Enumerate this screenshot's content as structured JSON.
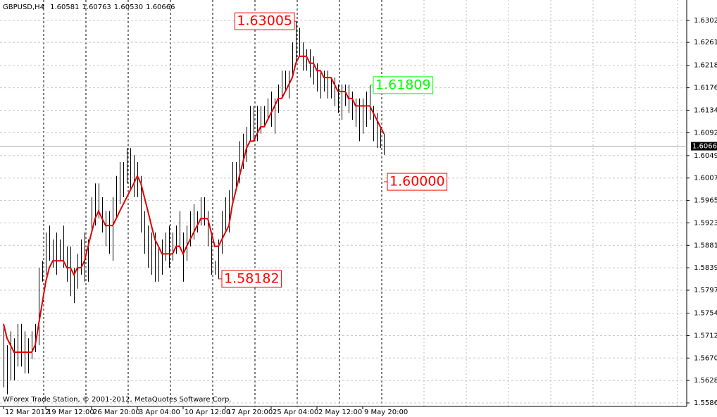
{
  "chart_data": {
    "type": "ohlc",
    "title": "GBPUSD,H4",
    "quote": [
      1.60581,
      1.60763,
      {
        "value": 1.6053,
        "label": "1.60530"
      },
      1.60666
    ],
    "footer": "WForex Trade Station, © 2001-2012, MetaQuotes Software Corp.",
    "color": "#000000",
    "high": [
      1.5734,
      1.5694,
      1.572,
      1.5707,
      1.5734,
      1.5734,
      1.572,
      1.5707,
      1.572,
      1.5734,
      1.5839,
      1.5852,
      1.5905,
      1.5918,
      1.5892,
      1.5905,
      1.5892,
      1.5918,
      1.5879,
      1.5879,
      1.5839,
      1.5865,
      1.5892,
      1.5905,
      1.5892,
      1.5971,
      1.5997,
      1.5997,
      1.5971,
      1.5945,
      1.5945,
      1.5971,
      1.6011,
      1.6037,
      1.6037,
      1.6063,
      1.6063,
      1.605,
      1.6037,
      1.6011,
      1.5945,
      1.5918,
      1.5905,
      1.5905,
      1.5879,
      1.5892,
      1.5905,
      1.5918,
      1.5905,
      1.5918,
      1.5945,
      1.5905,
      1.5918,
      1.5945,
      1.5958,
      1.5945,
      1.5971,
      1.5971,
      1.5945,
      1.5905,
      1.5852,
      1.5892,
      1.5945,
      1.5971,
      1.5984,
      1.6037,
      1.6037,
      1.6076,
      1.609,
      1.6103,
      1.6142,
      1.6142,
      1.6142,
      1.6142,
      1.6142,
      1.6156,
      1.6169,
      1.6156,
      1.6182,
      1.6208,
      1.6208,
      1.6208,
      1.6261,
      1.63005,
      1.6288,
      1.6261,
      1.6248,
      1.6248,
      1.6235,
      1.6222,
      1.6208,
      1.6208,
      1.6208,
      1.6195,
      1.6195,
      1.6182,
      1.6182,
      1.6182,
      1.6182,
      1.6169,
      1.6156,
      1.6156,
      1.6156,
      1.6169,
      1.61809,
      1.6142,
      1.6129,
      1.6103,
      1.609
    ],
    "low": [
      1.5615,
      1.5602,
      1.5628,
      1.5628,
      1.5654,
      1.5654,
      1.5641,
      1.5641,
      1.5668,
      1.5681,
      1.5694,
      1.5813,
      1.5826,
      1.5852,
      1.5839,
      1.5826,
      1.5852,
      1.5839,
      1.5813,
      1.5786,
      1.5773,
      1.58,
      1.5826,
      1.5813,
      1.5813,
      1.5905,
      1.5918,
      1.5931,
      1.5905,
      1.5879,
      1.5865,
      1.5852,
      1.5931,
      1.5958,
      1.5971,
      1.5997,
      1.5984,
      1.5971,
      1.5971,
      1.5905,
      1.5865,
      1.5839,
      1.5826,
      1.5813,
      1.5813,
      1.5826,
      1.5852,
      1.5839,
      1.5852,
      1.5865,
      1.5879,
      1.5813,
      1.5852,
      1.5879,
      1.5892,
      1.5905,
      1.5918,
      1.5918,
      1.5879,
      1.5826,
      1.5826,
      1.58182,
      1.5865,
      1.5905,
      1.5905,
      1.5958,
      1.5984,
      1.5997,
      1.6024,
      1.6037,
      1.6076,
      1.6076,
      1.6076,
      1.609,
      1.6103,
      1.6116,
      1.6103,
      1.609,
      1.6129,
      1.6156,
      1.6169,
      1.6156,
      1.6195,
      1.6222,
      1.6235,
      1.6208,
      1.6208,
      1.6195,
      1.6182,
      1.6169,
      1.6156,
      1.6169,
      1.6156,
      1.6156,
      1.6142,
      1.6129,
      1.6116,
      1.6142,
      1.6129,
      1.6116,
      1.6103,
      1.6076,
      1.609,
      1.6103,
      1.6116,
      1.6076,
      1.6063,
      1.6063,
      1.605
    ],
    "ma": {
      "color": "#e00000",
      "values": [
        1.5734,
        1.5707,
        1.5694,
        1.5681,
        1.5681,
        1.5681,
        1.5681,
        1.5681,
        1.5681,
        1.5694,
        1.5734,
        1.5773,
        1.5813,
        1.5839,
        1.5852,
        1.5852,
        1.5852,
        1.5852,
        1.5839,
        1.5839,
        1.5826,
        1.5839,
        1.5839,
        1.5852,
        1.5879,
        1.5905,
        1.5931,
        1.5945,
        1.5931,
        1.5918,
        1.5918,
        1.5918,
        1.5931,
        1.5945,
        1.5958,
        1.5971,
        1.5984,
        1.5997,
        1.6011,
        1.5997,
        1.5971,
        1.5945,
        1.5918,
        1.5892,
        1.5879,
        1.5865,
        1.5865,
        1.5865,
        1.5865,
        1.5879,
        1.5879,
        1.5865,
        1.5879,
        1.5892,
        1.5905,
        1.5918,
        1.5931,
        1.5931,
        1.5931,
        1.5905,
        1.5879,
        1.5879,
        1.5892,
        1.5905,
        1.5918,
        1.5958,
        1.5984,
        1.6011,
        1.6037,
        1.6063,
        1.6076,
        1.6076,
        1.609,
        1.6103,
        1.6103,
        1.6116,
        1.6129,
        1.6142,
        1.6156,
        1.6156,
        1.6169,
        1.6182,
        1.6195,
        1.6222,
        1.6235,
        1.6235,
        1.6235,
        1.6222,
        1.6222,
        1.6208,
        1.6208,
        1.6195,
        1.6195,
        1.6195,
        1.6182,
        1.6169,
        1.6169,
        1.6169,
        1.6156,
        1.6156,
        1.6142,
        1.6142,
        1.6142,
        1.6142,
        1.6142,
        1.6129,
        1.6116,
        1.6103,
        1.609
      ]
    },
    "annotations": [
      {
        "value": 1.63005,
        "x": 83,
        "color": "#ff0000",
        "side": "left"
      },
      {
        "value": 1.61809,
        "x": 104,
        "color": "#00ff00",
        "side": "right"
      },
      {
        "value": 1.6,
        "label": "1.60000",
        "x": 108,
        "color": "#ff0000",
        "side": "right"
      },
      {
        "value": 1.58182,
        "x": 61,
        "color": "#ff0000",
        "side": "right"
      }
    ],
    "xlim": [
      -1,
      194
    ],
    "xticks": [
      {
        "value": 0,
        "label": "12 Mar 2012"
      },
      {
        "value": 12,
        "label": "19 Mar 12:00"
      },
      {
        "value": 25,
        "label": "26 Mar 20:00"
      },
      {
        "value": 38,
        "label": "3 Apr 04:00"
      },
      {
        "value": 51,
        "label": "10 Apr 12:00"
      },
      {
        "value": 63,
        "label": "17 Apr 20:00"
      },
      {
        "value": 76,
        "label": "25 Apr 04:00"
      },
      {
        "value": 89,
        "label": "2 May 12:00"
      },
      {
        "value": 102,
        "label": "9 May 20:00"
      }
    ],
    "ylim": [
      1.55794,
      1.63403
    ],
    "yticks": [
      {
        "value": 1.6302,
        "label": "1.63020"
      },
      {
        "value": 1.6261,
        "label": "1.62610"
      },
      {
        "value": 1.6218,
        "label": "1.62180"
      },
      {
        "value": 1.6176,
        "label": "1.61760"
      },
      {
        "value": 1.6134,
        "label": "1.61340"
      },
      {
        "value": 1.6092,
        "label": "1.60920"
      },
      {
        "value": 1.6049,
        "label": "1.60490"
      },
      {
        "value": 1.6007,
        "label": "1.60070"
      },
      {
        "value": 1.5965,
        "label": "1.59650"
      },
      {
        "value": 1.5923,
        "label": "1.59230"
      },
      {
        "value": 1.5881,
        "label": "1.58810"
      },
      {
        "value": 1.5839,
        "label": "1.58390"
      },
      {
        "value": 1.5797,
        "label": "1.57970"
      },
      {
        "value": 1.5754,
        "label": "1.57540"
      },
      {
        "value": 1.5712,
        "label": "1.57120"
      },
      {
        "value": 1.567,
        "label": "1.56700"
      },
      {
        "value": 1.5628,
        "label": "1.56280"
      },
      {
        "value": 1.5586,
        "label": "1.55860"
      }
    ],
    "grid": true
  }
}
